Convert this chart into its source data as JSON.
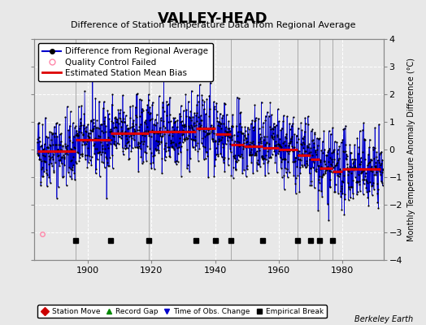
{
  "title": "VALLEY-HEAD",
  "subtitle": "Difference of Station Temperature Data from Regional Average",
  "ylabel": "Monthly Temperature Anomaly Difference (°C)",
  "ylim": [
    -4,
    4
  ],
  "xlim": [
    1883,
    1993
  ],
  "background_color": "#e8e8e8",
  "plot_bg_color": "#e8e8e8",
  "grid_color": "#ffffff",
  "line_color": "#0000cc",
  "dot_color": "#000000",
  "bias_color": "#dd0000",
  "qc_color": "#ff88aa",
  "seed": 42,
  "start_year": 1884,
  "end_year": 1992,
  "bias_segments": [
    {
      "xstart": 1884,
      "xend": 1896,
      "ymean": -0.05
    },
    {
      "xstart": 1896,
      "xend": 1907,
      "ymean": 0.35
    },
    {
      "xstart": 1907,
      "xend": 1919,
      "ymean": 0.6
    },
    {
      "xstart": 1919,
      "xend": 1934,
      "ymean": 0.65
    },
    {
      "xstart": 1934,
      "xend": 1940,
      "ymean": 0.75
    },
    {
      "xstart": 1940,
      "xend": 1945,
      "ymean": 0.55
    },
    {
      "xstart": 1945,
      "xend": 1949,
      "ymean": 0.18
    },
    {
      "xstart": 1949,
      "xend": 1955,
      "ymean": 0.12
    },
    {
      "xstart": 1955,
      "xend": 1960,
      "ymean": 0.05
    },
    {
      "xstart": 1960,
      "xend": 1966,
      "ymean": 0.0
    },
    {
      "xstart": 1966,
      "xend": 1970,
      "ymean": -0.2
    },
    {
      "xstart": 1970,
      "xend": 1973,
      "ymean": -0.35
    },
    {
      "xstart": 1973,
      "xend": 1977,
      "ymean": -0.68
    },
    {
      "xstart": 1977,
      "xend": 1980,
      "ymean": -0.78
    },
    {
      "xstart": 1980,
      "xend": 1985,
      "ymean": -0.72
    },
    {
      "xstart": 1985,
      "xend": 1992,
      "ymean": -0.72
    }
  ],
  "empirical_breaks": [
    1896,
    1907,
    1919,
    1934,
    1940,
    1945,
    1955,
    1966,
    1970,
    1973,
    1977
  ],
  "vertical_lines": [
    1896,
    1919,
    1945,
    1966,
    1973,
    1977
  ],
  "berkeley_earth_text": "Berkeley Earth"
}
